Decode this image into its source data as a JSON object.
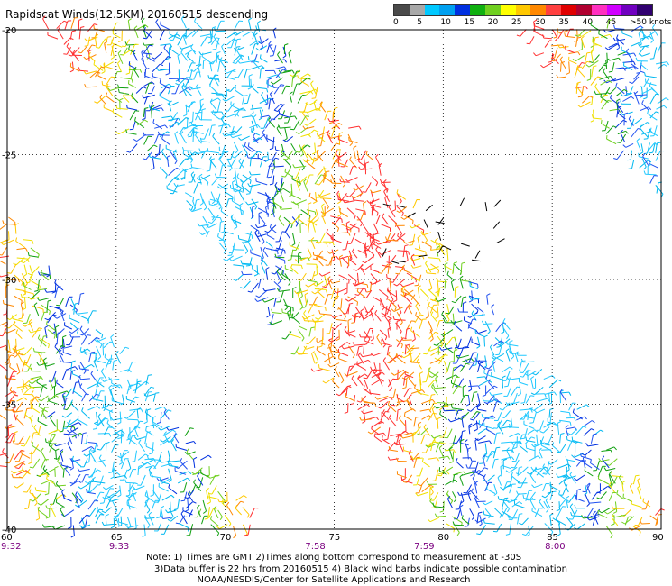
{
  "title": "Rapidscat Winds(12.5KM) 20160515 descending",
  "colorbar": {
    "labels": [
      "0",
      "5",
      "10",
      "15",
      "20",
      "25",
      "30",
      "35",
      "40",
      "45",
      ">50 knots"
    ],
    "colors": [
      "#4a4a4a",
      "#a8a8a8",
      "#00c8ff",
      "#00a0f0",
      "#0030e0",
      "#10b010",
      "#70d020",
      "#ffff00",
      "#ffc800",
      "#ff8800",
      "#ff4040",
      "#e00000",
      "#b00030",
      "#ff30c0",
      "#d000ff",
      "#7000c0",
      "#300070"
    ]
  },
  "map": {
    "lat_labels": [
      "-20",
      "-25",
      "-30",
      "-35",
      "-40"
    ],
    "lon_labels": [
      "60",
      "65",
      "70",
      "75",
      "80",
      "85",
      "90"
    ],
    "time_labels": [
      {
        "lon": 60,
        "text": "9:32"
      },
      {
        "lon": 65,
        "text": "9:33"
      },
      {
        "lon": 74,
        "text": "7:58"
      },
      {
        "lon": 79,
        "text": "7:59"
      },
      {
        "lon": 85,
        "text": "8:00"
      }
    ],
    "time_color": "#7b0080"
  },
  "notes": [
    "Note: 1) Times are GMT 2)Times along bottom correspond to measurement at -30S",
    "3)Data buffer is 22 hrs from 20160515 4) Black wind barbs indicate possible contamination",
    "NOAA/NESDIS/Center for Satellite Applications and Research"
  ]
}
